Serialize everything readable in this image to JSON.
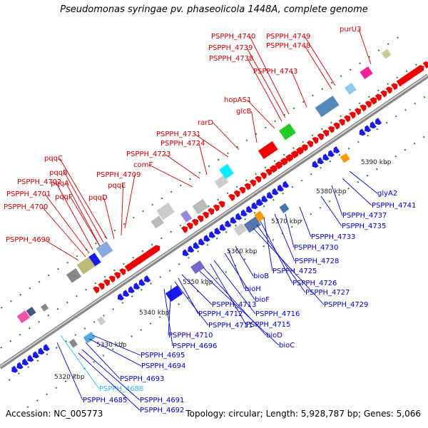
{
  "title": "Pseudomonas syringae pv. phaseolicola 1448A, complete genome",
  "footer": {
    "accession": "Accession: NC_005773",
    "topology": "Topology: circular; Length: 5,928,787 bp; Genes: 5,066"
  },
  "colors": {
    "forward_label": "#cc0000",
    "reverse_label": "#0000cc",
    "highlight_label": "#33bbee",
    "forward_gene": "#ee0000",
    "reverse_gene": "#1a1aee",
    "backbone": "#999999",
    "tick": "#228822"
  },
  "ticks": [
    "5320 kbp",
    "5330 kbp",
    "5340 kbp",
    "5350 kbp",
    "5360 kbp",
    "5370 kbp",
    "5380 kbp",
    "5390 kbp"
  ],
  "forward_labels": [
    "purU3",
    "PSPPH_4749",
    "PSPPH_4748",
    "PSPPH_4740",
    "PSPPH_4739",
    "PSPPH_4738",
    "PSPPH_4743",
    "hopAS1",
    "glcB",
    "rarD",
    "PSPPH_4731",
    "PSPPH_4724",
    "PSPPH_4723",
    "comF",
    "PSPPH_4709",
    "pqqE",
    "pqqD",
    "pqqC",
    "pqqB",
    "pqqA",
    "PSPPH_4702",
    "PSPPH_4701",
    "pqqF",
    "PSPPH_4700",
    "PSPPH_4699"
  ],
  "reverse_labels": [
    "glyA2",
    "PSPPH_4741",
    "PSPPH_4737",
    "PSPPH_4735",
    "PSPPH_4733",
    "PSPPH_4730",
    "PSPPH_4728",
    "PSPPH_4725",
    "PSPPH_4726",
    "PSPPH_4727",
    "PSPPH_4729",
    "bioB",
    "bioH",
    "bioF",
    "PSPPH_4716",
    "PSPPH_4715",
    "bioD",
    "bioC",
    "PSPPH_4713",
    "PSPPH_4712",
    "PSPPH_4711",
    "PSPPH_4710",
    "PSPPH_4696",
    "PSPPH_4695",
    "PSPPH_4694",
    "PSPPH_4688",
    "PSPPH_4693",
    "PSPPH_4685",
    "PSPPH_4691",
    "PSPPH_4692"
  ],
  "highlighted_reverse": [
    "PSPPH_4688"
  ]
}
